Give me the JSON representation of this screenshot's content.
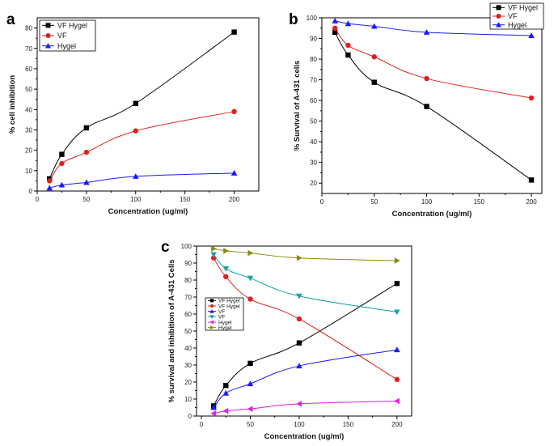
{
  "chart_data": [
    {
      "panel": "a",
      "type": "line",
      "xlabel": "Concentration (ug/ml)",
      "ylabel": "% cell inhibition",
      "xlim": [
        0,
        225
      ],
      "ylim": [
        0,
        85
      ],
      "xticks": [
        0,
        50,
        100,
        150,
        200
      ],
      "yticks": [
        0,
        10,
        20,
        30,
        40,
        50,
        60,
        70,
        80
      ],
      "x": [
        12.5,
        25,
        50,
        100,
        200
      ],
      "legend_position": "top-left",
      "series": [
        {
          "name": "VF Hygel",
          "color": "#000000",
          "marker": "square",
          "values": [
            6,
            18,
            31,
            43,
            78
          ]
        },
        {
          "name": "VF",
          "color": "#e02020",
          "marker": "circle",
          "values": [
            5,
            13.5,
            19,
            29.5,
            39
          ]
        },
        {
          "name": "Hygel",
          "color": "#1a1aff",
          "marker": "triangle-up",
          "values": [
            1.5,
            3,
            4.2,
            7.2,
            8.8
          ]
        }
      ]
    },
    {
      "panel": "b",
      "type": "line",
      "xlabel": "Concentration (ug/ml)",
      "ylabel": "% Survival of A-431 cells",
      "xlim": [
        0,
        210
      ],
      "ylim": [
        15,
        100
      ],
      "xticks": [
        0,
        50,
        100,
        150,
        200
      ],
      "yticks": [
        20,
        30,
        40,
        50,
        60,
        70,
        80,
        90,
        100
      ],
      "x": [
        12.5,
        25,
        50,
        100,
        200
      ],
      "legend_position": "top-right",
      "series": [
        {
          "name": "VF Hygel",
          "color": "#000000",
          "marker": "square",
          "values": [
            93,
            82,
            68.8,
            57.1,
            21.5
          ]
        },
        {
          "name": "VF",
          "color": "#e02020",
          "marker": "circle",
          "values": [
            95,
            86.7,
            81.1,
            70.6,
            61.2
          ]
        },
        {
          "name": "Hygel",
          "color": "#1a1aff",
          "marker": "triangle-up",
          "values": [
            98.5,
            97.2,
            95.9,
            93,
            91.4
          ]
        }
      ]
    },
    {
      "panel": "c",
      "type": "line",
      "xlabel": "Concentration (ug/ml)",
      "ylabel": "% survival and inhibition of A-431 Cells",
      "xlim": [
        -5,
        215
      ],
      "ylim": [
        0,
        100
      ],
      "xticks": [
        0,
        50,
        100,
        150,
        200
      ],
      "yticks": [
        0,
        10,
        20,
        30,
        40,
        50,
        60,
        70,
        80,
        90,
        100
      ],
      "x": [
        12.5,
        25,
        50,
        100,
        200
      ],
      "legend_position": "middle-left",
      "series": [
        {
          "name": "VF Hygel",
          "color": "#000000",
          "marker": "square",
          "values": [
            6,
            18,
            31,
            43,
            78
          ]
        },
        {
          "name": "VF Hygel",
          "color": "#e02020",
          "marker": "circle",
          "values": [
            93,
            82,
            68.8,
            57.1,
            21.5
          ]
        },
        {
          "name": "VF",
          "color": "#1a1aff",
          "marker": "triangle-up",
          "values": [
            5,
            13.5,
            19,
            29.5,
            39
          ]
        },
        {
          "name": "VF",
          "color": "#1aa3a3",
          "marker": "triangle-down",
          "values": [
            95,
            86.7,
            81.1,
            70.6,
            61.2
          ]
        },
        {
          "name": "Hygel",
          "color": "#e020e0",
          "marker": "triangle-left",
          "values": [
            1.5,
            3,
            4.2,
            7.2,
            8.8
          ]
        },
        {
          "name": "Hygel",
          "color": "#8a8a10",
          "marker": "triangle-right",
          "values": [
            98.5,
            97.2,
            95.9,
            93,
            91.4
          ]
        }
      ]
    }
  ]
}
